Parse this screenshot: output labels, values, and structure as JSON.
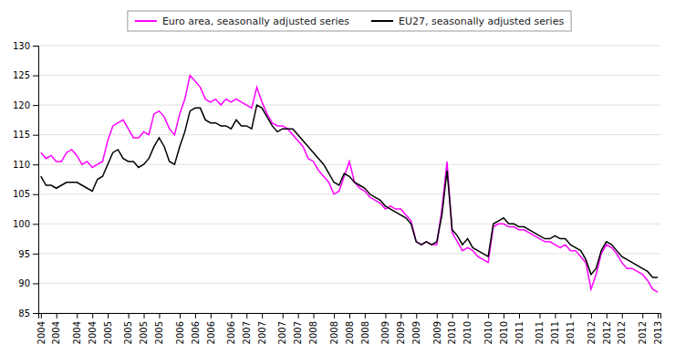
{
  "chart_data": {
    "type": "line",
    "categories": [
      "2004",
      null,
      null,
      "2004",
      null,
      null,
      null,
      "2004",
      null,
      null,
      "2004",
      null,
      null,
      "2005",
      null,
      null,
      null,
      "2005",
      null,
      null,
      "2005",
      null,
      null,
      "2005",
      null,
      null,
      null,
      "2006",
      null,
      null,
      "2006",
      null,
      null,
      "2006",
      null,
      null,
      null,
      "2006",
      null,
      null,
      "2007",
      null,
      null,
      "2007",
      null,
      null,
      null,
      "2007",
      null,
      null,
      "2007",
      null,
      null,
      "2008",
      null,
      null,
      null,
      "2008",
      null,
      null,
      "2008",
      null,
      null,
      "2008",
      null,
      null,
      null,
      "2009",
      null,
      null,
      "2009",
      null,
      null,
      "2009",
      null,
      null,
      null,
      "2009",
      null,
      null,
      "2010",
      null,
      null,
      "2010",
      null,
      null,
      null,
      "2010",
      null,
      null,
      "2010",
      null,
      null,
      "2011",
      null,
      null,
      null,
      "2011",
      null,
      null,
      "2011",
      null,
      null,
      "2011",
      null,
      null,
      null,
      "2012",
      null,
      null,
      "2012",
      null,
      null,
      "2012",
      null,
      null,
      null,
      "2012",
      null,
      null,
      "2013"
    ],
    "series": [
      {
        "name": "Euro area, seasonally adjusted series",
        "color": "#FF00FF",
        "values": [
          112.0,
          111.0,
          111.5,
          110.5,
          110.5,
          112.0,
          112.5,
          111.5,
          110.0,
          110.5,
          109.5,
          110.0,
          110.5,
          114.0,
          116.5,
          117.0,
          117.5,
          116.0,
          114.5,
          114.5,
          115.5,
          115.0,
          118.5,
          119.0,
          118.0,
          116.0,
          115.0,
          118.5,
          121.0,
          125.0,
          124.0,
          123.0,
          121.0,
          120.5,
          121.0,
          120.0,
          121.0,
          120.5,
          121.0,
          120.5,
          120.0,
          119.5,
          123.0,
          120.5,
          118.5,
          117.0,
          116.5,
          116.5,
          116.0,
          115.0,
          114.0,
          113.0,
          111.0,
          110.5,
          109.0,
          108.0,
          107.0,
          105.0,
          105.5,
          108.0,
          110.5,
          107.0,
          106.0,
          105.5,
          104.5,
          104.0,
          103.5,
          102.5,
          103.0,
          102.5,
          102.5,
          101.5,
          100.5,
          97.0,
          96.5,
          97.0,
          96.5,
          96.5,
          102.5,
          110.5,
          98.5,
          97.0,
          95.5,
          96.0,
          95.5,
          94.5,
          94.0,
          93.5,
          99.5,
          100.0,
          100.0,
          99.5,
          99.5,
          99.0,
          99.0,
          98.5,
          98.0,
          97.5,
          97.0,
          97.0,
          96.5,
          96.0,
          96.5,
          95.5,
          95.5,
          94.5,
          93.5,
          89.0,
          91.5,
          95.0,
          96.5,
          96.0,
          95.0,
          93.5,
          92.5,
          92.5,
          92.0,
          91.5,
          90.5,
          89.0,
          88.5
        ]
      },
      {
        "name": "EU27, seasonally adjusted series",
        "color": "#000000",
        "values": [
          108.0,
          106.5,
          106.5,
          106.0,
          106.5,
          107.0,
          107.0,
          107.0,
          106.5,
          106.0,
          105.5,
          107.5,
          108.0,
          110.0,
          112.0,
          112.5,
          111.0,
          110.5,
          110.5,
          109.5,
          110.0,
          111.0,
          113.0,
          114.5,
          113.0,
          110.5,
          110.0,
          113.0,
          115.5,
          119.0,
          119.5,
          119.5,
          117.5,
          117.0,
          117.0,
          116.5,
          116.5,
          116.0,
          117.5,
          116.5,
          116.5,
          116.0,
          120.0,
          119.5,
          118.0,
          116.5,
          115.5,
          116.0,
          116.0,
          116.0,
          115.0,
          114.0,
          113.0,
          112.0,
          111.0,
          110.0,
          108.5,
          107.0,
          106.5,
          108.5,
          108.0,
          107.0,
          106.5,
          106.0,
          105.0,
          104.5,
          104.0,
          103.0,
          102.5,
          102.0,
          101.5,
          101.0,
          100.0,
          97.0,
          96.5,
          97.0,
          96.5,
          97.0,
          101.5,
          109.0,
          99.0,
          98.0,
          96.5,
          97.5,
          96.0,
          95.5,
          95.0,
          94.5,
          100.0,
          100.5,
          101.0,
          100.0,
          100.0,
          99.5,
          99.5,
          99.0,
          98.5,
          98.0,
          97.5,
          97.5,
          98.0,
          97.5,
          97.5,
          96.5,
          96.0,
          95.5,
          94.0,
          91.5,
          92.5,
          95.5,
          97.0,
          96.5,
          95.5,
          94.5,
          94.0,
          93.5,
          93.0,
          92.5,
          92.0,
          91.0,
          91.0
        ]
      }
    ],
    "ylim": [
      85,
      130
    ],
    "yticks": [
      85,
      90,
      95,
      100,
      105,
      110,
      115,
      120,
      125,
      130
    ],
    "grid": true,
    "legend": "top"
  }
}
